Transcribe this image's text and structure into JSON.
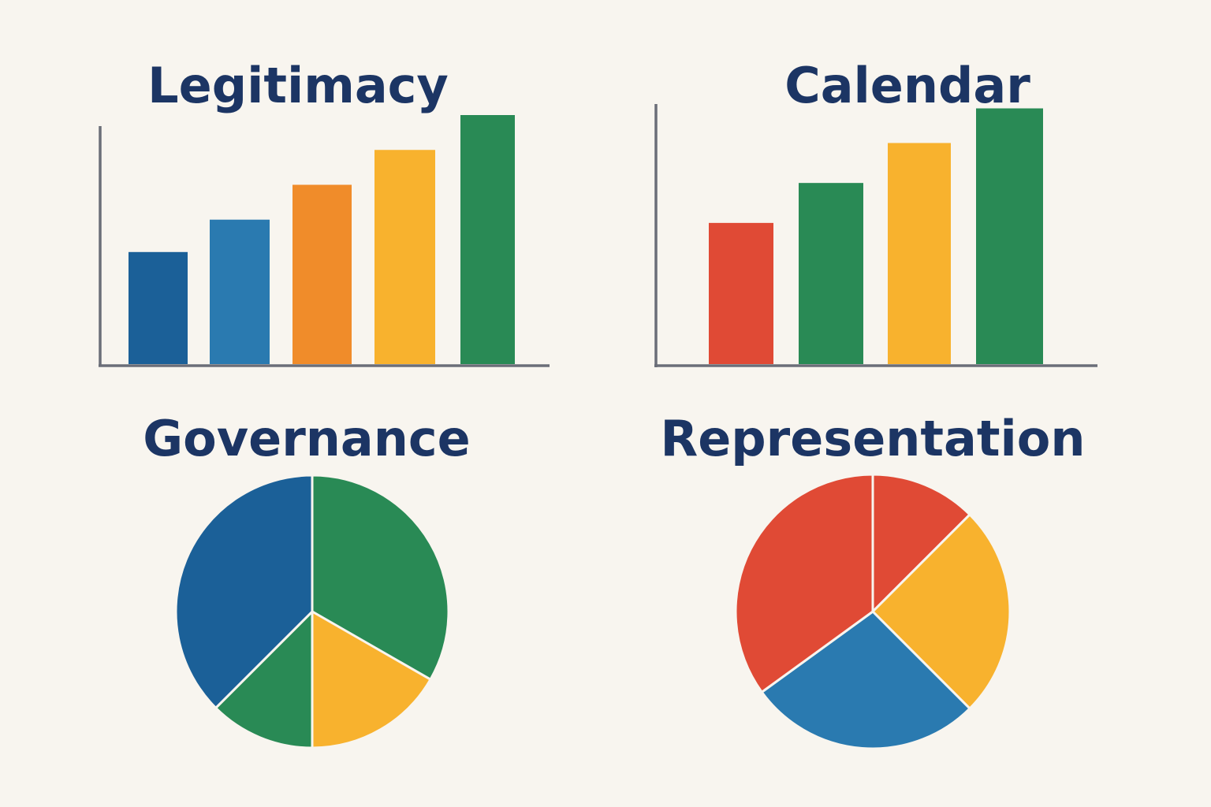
{
  "colors": {
    "background": "#f8f5ef",
    "title": "#1c3564",
    "axis": "#6b6e78",
    "slice_border": "#f8f5ef"
  },
  "chart_data": [
    {
      "type": "bar",
      "title": "Legitimacy",
      "categories": [
        "",
        "",
        "",
        "",
        ""
      ],
      "values": [
        4.5,
        5.8,
        7.2,
        8.6,
        10.0
      ],
      "colors": [
        "#1b6098",
        "#2a7ab0",
        "#f08c2a",
        "#f8b22e",
        "#298a55"
      ],
      "ylim": [
        0,
        10
      ],
      "xlabel": "",
      "ylabel": "",
      "grid": false,
      "legend": "none"
    },
    {
      "type": "bar",
      "title": "Calendar",
      "categories": [
        "",
        "",
        "",
        ""
      ],
      "values": [
        5.3,
        6.8,
        8.3,
        9.6
      ],
      "colors": [
        "#e04a35",
        "#298a55",
        "#f8b22e",
        "#298a55"
      ],
      "ylim": [
        0,
        10
      ],
      "xlabel": "",
      "ylabel": "",
      "grid": false,
      "legend": "none"
    },
    {
      "type": "pie",
      "title": "Governance",
      "labels": [
        "",
        "",
        "",
        ""
      ],
      "values": [
        33.3,
        16.7,
        12.5,
        37.5
      ],
      "colors": [
        "#298a55",
        "#f8b22e",
        "#298a55",
        "#1b6098"
      ],
      "start": "12 o'clock, clockwise",
      "legend": "none"
    },
    {
      "type": "pie",
      "title": "Representation",
      "labels": [
        "",
        "",
        "",
        ""
      ],
      "values": [
        12.5,
        25.0,
        27.5,
        35.0
      ],
      "colors": [
        "#e04a35",
        "#f8b22e",
        "#2a7ab0",
        "#e04a35"
      ],
      "start": "12 o'clock, clockwise",
      "legend": "none"
    }
  ]
}
